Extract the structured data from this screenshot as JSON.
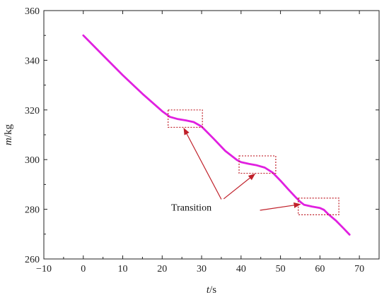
{
  "chart_data": {
    "type": "line",
    "xlabel_var": "t",
    "xlabel_unit": "/s",
    "ylabel_var": "m",
    "ylabel_unit": "/kg",
    "xlim": [
      -10,
      75
    ],
    "ylim": [
      260,
      360
    ],
    "xticks": [
      -10,
      0,
      10,
      20,
      30,
      40,
      50,
      60,
      70
    ],
    "yticks": [
      260,
      280,
      300,
      320,
      340,
      360
    ],
    "grid": false,
    "series": [
      {
        "color": "#e020e0",
        "x": [
          0,
          5,
          10,
          15,
          20,
          22,
          24,
          26,
          28,
          30,
          33,
          36,
          39,
          40,
          42,
          44,
          46,
          48,
          50,
          52,
          54,
          55,
          56,
          58,
          60,
          61,
          62,
          64,
          66,
          67.5
        ],
        "y": [
          350,
          342,
          334,
          326.5,
          319.5,
          317.2,
          316.3,
          315.8,
          315.1,
          313.3,
          308.5,
          303.5,
          299.8,
          299.0,
          298.3,
          297.7,
          296.8,
          294.8,
          291.5,
          288.0,
          284.6,
          283.0,
          281.8,
          281.1,
          280.5,
          279.8,
          278.2,
          275.5,
          272.3,
          269.8
        ]
      }
    ],
    "annotation": {
      "text": "Transition",
      "color": "#c0202a",
      "boxes": [
        {
          "x0": 21.5,
          "x1": 30.2,
          "y0": 313.0,
          "y1": 320.0
        },
        {
          "x0": 39.5,
          "x1": 48.8,
          "y0": 294.5,
          "y1": 301.5
        },
        {
          "x0": 54.5,
          "x1": 64.8,
          "y0": 277.8,
          "y1": 284.5
        }
      ],
      "targets": [
        {
          "x": 25.5,
          "y": 312.6
        },
        {
          "x": 43.5,
          "y": 294.2
        },
        {
          "x": 55.0,
          "y": 282.0
        }
      ],
      "origins": [
        {
          "x": 35.0,
          "y": 284.0
        },
        {
          "x": 35.6,
          "y": 284.2
        },
        {
          "x": 44.8,
          "y": 279.6
        }
      ],
      "label_pos": {
        "x": 27.4,
        "y": 279.5
      }
    }
  }
}
